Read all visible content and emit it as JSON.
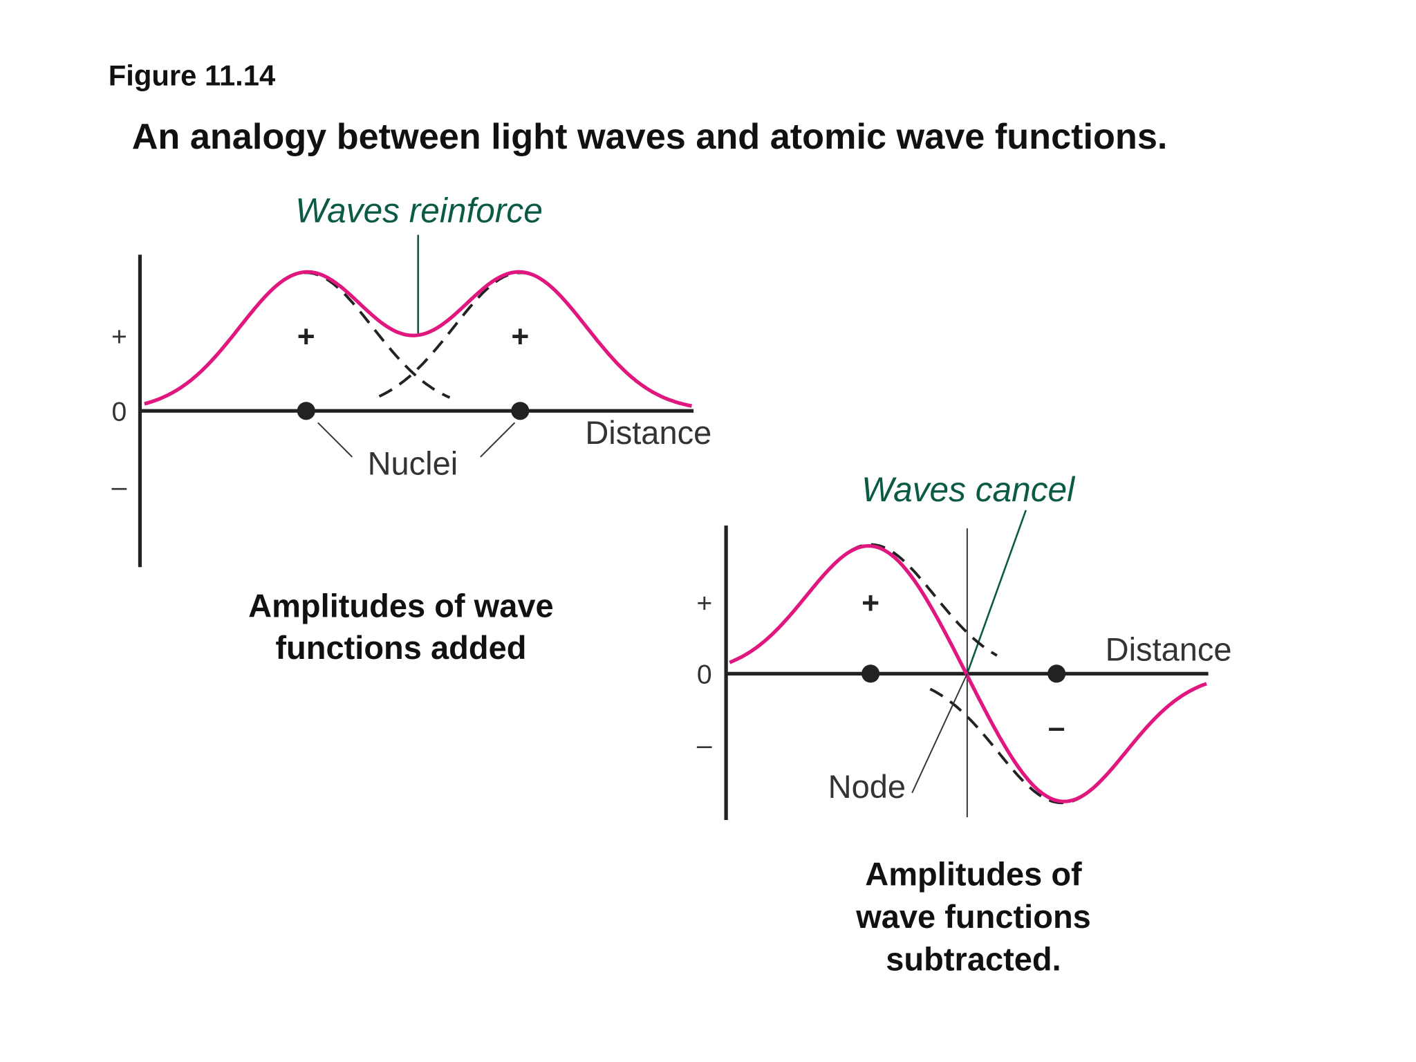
{
  "header": {
    "figure": "Figure 11.14",
    "title": "An analogy between light waves and atomic wave functions."
  },
  "panels": [
    {
      "annotation": "Waves reinforce",
      "axis_labels": [
        "+",
        "0",
        "–"
      ],
      "lobe_signs": [
        "+",
        "+"
      ],
      "nuclei_label": "Nuclei",
      "distance_label": "Distance",
      "caption": [
        "Amplitudes of wave",
        "functions added"
      ]
    },
    {
      "annotation": "Waves cancel",
      "axis_labels": [
        "+",
        "0",
        "–"
      ],
      "lobe_signs": [
        "+",
        "–"
      ],
      "node_label": "Node",
      "distance_label": "Distance",
      "caption": [
        "Amplitudes of",
        "wave functions",
        "subtracted."
      ]
    }
  ]
}
